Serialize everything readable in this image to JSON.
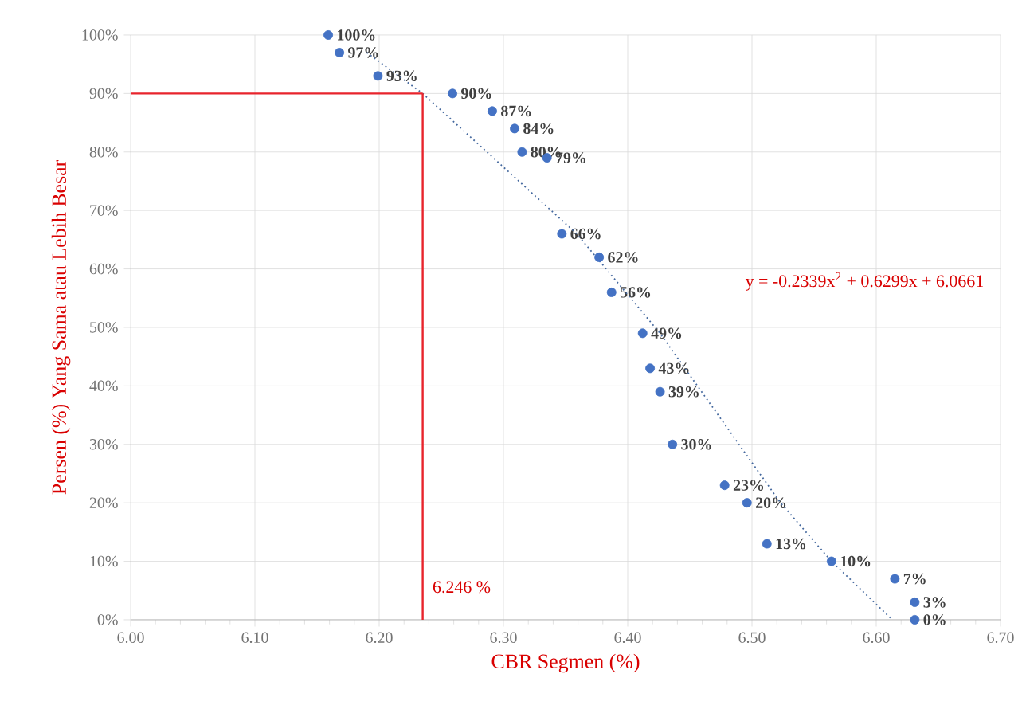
{
  "chart_data": {
    "type": "scatter",
    "xlabel": "CBR Segmen (%)",
    "ylabel": "Persen (%) Yang Sama atau Lebih Besar",
    "xlim": [
      6.0,
      6.7
    ],
    "xticks": [
      {
        "value": 6.0,
        "label": "6.00"
      },
      {
        "value": 6.1,
        "label": "6.10"
      },
      {
        "value": 6.2,
        "label": "6.20"
      },
      {
        "value": 6.3,
        "label": "6.30"
      },
      {
        "value": 6.4,
        "label": "6.40"
      },
      {
        "value": 6.5,
        "label": "6.50"
      },
      {
        "value": 6.6,
        "label": "6.60"
      },
      {
        "value": 6.7,
        "label": "6.70"
      }
    ],
    "ylim": [
      0,
      100
    ],
    "yticks": [
      {
        "value": 0,
        "label": "0%"
      },
      {
        "value": 10,
        "label": "10%"
      },
      {
        "value": 20,
        "label": "20%"
      },
      {
        "value": 30,
        "label": "30%"
      },
      {
        "value": 40,
        "label": "40%"
      },
      {
        "value": 50,
        "label": "50%"
      },
      {
        "value": 60,
        "label": "60%"
      },
      {
        "value": 70,
        "label": "70%"
      },
      {
        "value": 80,
        "label": "80%"
      },
      {
        "value": 90,
        "label": "90%"
      },
      {
        "value": 100,
        "label": "100%"
      }
    ],
    "grid": true,
    "series": [
      {
        "color": "#4472c4",
        "marker": "circle",
        "x": [
          6.159,
          6.168,
          6.199,
          6.259,
          6.291,
          6.309,
          6.315,
          6.335,
          6.347,
          6.377,
          6.387,
          6.412,
          6.418,
          6.426,
          6.436,
          6.478,
          6.496,
          6.512,
          6.564,
          6.615,
          6.631,
          6.631
        ],
        "values": [
          100,
          97,
          93,
          90,
          87,
          84,
          80,
          79,
          66,
          62,
          56,
          49,
          43,
          39,
          30,
          23,
          20,
          13,
          10,
          7,
          3,
          0
        ],
        "value_labels": [
          "100%",
          "97%",
          "93%",
          "90%",
          "87%",
          "84%",
          "80%",
          "79%",
          "66%",
          "62%",
          "56%",
          "49%",
          "43%",
          "39%",
          "30%",
          "23%",
          "20%",
          "13%",
          "10%",
          "7%",
          "3%",
          "0%"
        ]
      },
      {
        "type": "line",
        "color": "#44689e",
        "line_style": "dotted",
        "marker": "none",
        "x": [
          6.19,
          6.235,
          6.359,
          6.426,
          6.523,
          6.564,
          6.613
        ],
        "values": [
          97,
          90,
          66,
          49,
          20,
          10,
          0
        ]
      },
      {
        "type": "line",
        "color": "#e8242c",
        "line_style": "solid",
        "marker": "none",
        "x": [
          6.0,
          6.235
        ],
        "values": [
          90,
          90
        ]
      },
      {
        "type": "line",
        "color": "#e8242c",
        "line_style": "solid",
        "marker": "none",
        "x": [
          6.235,
          6.235
        ],
        "values": [
          90,
          0
        ]
      }
    ],
    "annotations": [
      "y = -0.2339x$^{2}$ + 0.6299x + 6.0661",
      {
        "text": "6.246 %",
        "x": 6.235,
        "y": 4
      }
    ]
  }
}
